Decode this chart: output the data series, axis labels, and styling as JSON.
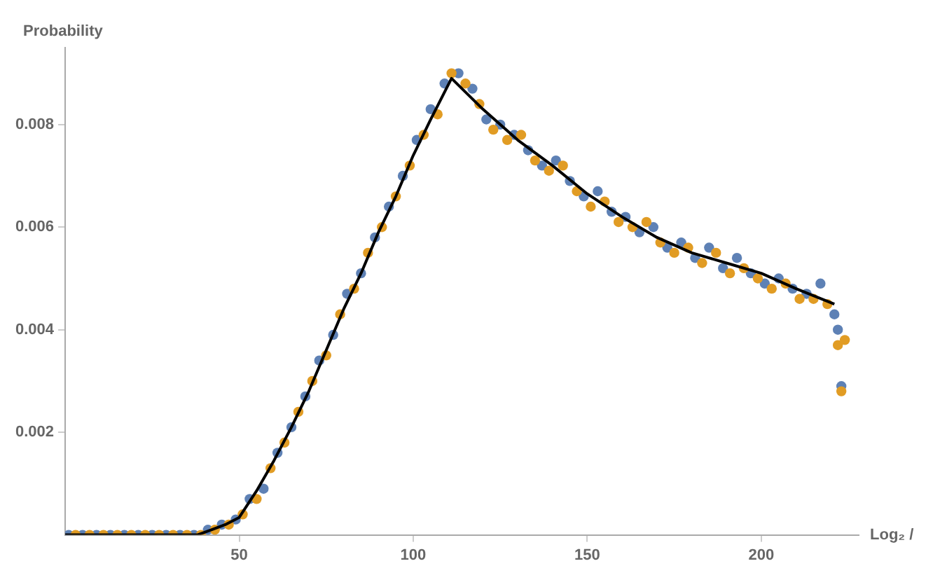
{
  "chart_data": {
    "type": "scatter",
    "xlabel": "Log₂ /",
    "ylabel": "Probability",
    "xlim": [
      0,
      228
    ],
    "ylim": [
      0,
      0.0095
    ],
    "xticks": [
      50,
      100,
      150,
      200
    ],
    "yticks": [
      0.002,
      0.004,
      0.006,
      0.008
    ],
    "grid": false,
    "legend": false,
    "marker": "circle",
    "series": [
      {
        "color": "#5e81b5",
        "x": [
          1,
          5,
          9,
          13,
          17,
          21,
          25,
          29,
          33,
          37,
          41,
          45,
          49,
          53,
          57,
          61,
          65,
          69,
          73,
          77,
          81,
          85,
          89,
          93,
          97,
          101,
          105,
          109,
          113,
          117,
          121,
          125,
          129,
          133,
          137,
          141,
          145,
          149,
          153,
          157,
          161,
          165,
          169,
          173,
          177,
          181,
          185,
          189,
          193,
          197,
          201,
          205,
          209,
          213,
          217,
          221,
          222,
          223
        ],
        "values": [
          0,
          0,
          0,
          0,
          0,
          0,
          0,
          0,
          0,
          0,
          0.0001,
          0.0002,
          0.0003,
          0.0007,
          0.0009,
          0.0016,
          0.0021,
          0.0027,
          0.0034,
          0.0039,
          0.0047,
          0.0051,
          0.0058,
          0.0064,
          0.007,
          0.0077,
          0.0083,
          0.0088,
          0.009,
          0.0087,
          0.0081,
          0.008,
          0.0078,
          0.0075,
          0.0072,
          0.0073,
          0.0069,
          0.0066,
          0.0067,
          0.0063,
          0.0062,
          0.0059,
          0.006,
          0.0056,
          0.0057,
          0.0054,
          0.0056,
          0.0052,
          0.0054,
          0.0051,
          0.0049,
          0.005,
          0.0048,
          0.0047,
          0.0049,
          0.0043,
          0.004,
          0.0029
        ]
      },
      {
        "color": "#e19c24",
        "x": [
          3,
          7,
          11,
          15,
          19,
          23,
          27,
          31,
          35,
          39,
          43,
          47,
          51,
          55,
          59,
          63,
          67,
          71,
          75,
          79,
          83,
          87,
          91,
          95,
          99,
          103,
          107,
          111,
          115,
          119,
          123,
          127,
          131,
          135,
          139,
          143,
          147,
          151,
          155,
          159,
          163,
          167,
          171,
          175,
          179,
          183,
          187,
          191,
          195,
          199,
          203,
          207,
          211,
          215,
          219,
          222,
          223,
          224
        ],
        "values": [
          0,
          0,
          0,
          0,
          0,
          0,
          0,
          0,
          0,
          0,
          0.0001,
          0.0002,
          0.0004,
          0.0007,
          0.0013,
          0.0018,
          0.0024,
          0.003,
          0.0035,
          0.0043,
          0.0048,
          0.0055,
          0.006,
          0.0066,
          0.0072,
          0.0078,
          0.0082,
          0.009,
          0.0088,
          0.0084,
          0.0079,
          0.0077,
          0.0078,
          0.0073,
          0.0071,
          0.0072,
          0.0067,
          0.0064,
          0.0065,
          0.0061,
          0.006,
          0.0061,
          0.0057,
          0.0055,
          0.0056,
          0.0053,
          0.0055,
          0.0051,
          0.0052,
          0.005,
          0.0048,
          0.0049,
          0.0046,
          0.0046,
          0.0045,
          0.0037,
          0.0028,
          0.0038
        ]
      },
      {
        "type": "line",
        "color": "#000000",
        "marker": "none",
        "line_style": "solid",
        "x": [
          0,
          38,
          42,
          46,
          50,
          55,
          60,
          65,
          70,
          75,
          80,
          85,
          90,
          95,
          100,
          105,
          111,
          120,
          130,
          140,
          150,
          160,
          170,
          180,
          190,
          200,
          210,
          221
        ],
        "values": [
          0,
          0,
          0.0001,
          0.0002,
          0.00034,
          0.00086,
          0.00145,
          0.0021,
          0.0028,
          0.0036,
          0.0044,
          0.0051,
          0.0059,
          0.0066,
          0.0074,
          0.0081,
          0.0089,
          0.0083,
          0.0077,
          0.0072,
          0.00665,
          0.0062,
          0.0058,
          0.0055,
          0.0053,
          0.0051,
          0.0048,
          0.0045
        ]
      }
    ]
  }
}
